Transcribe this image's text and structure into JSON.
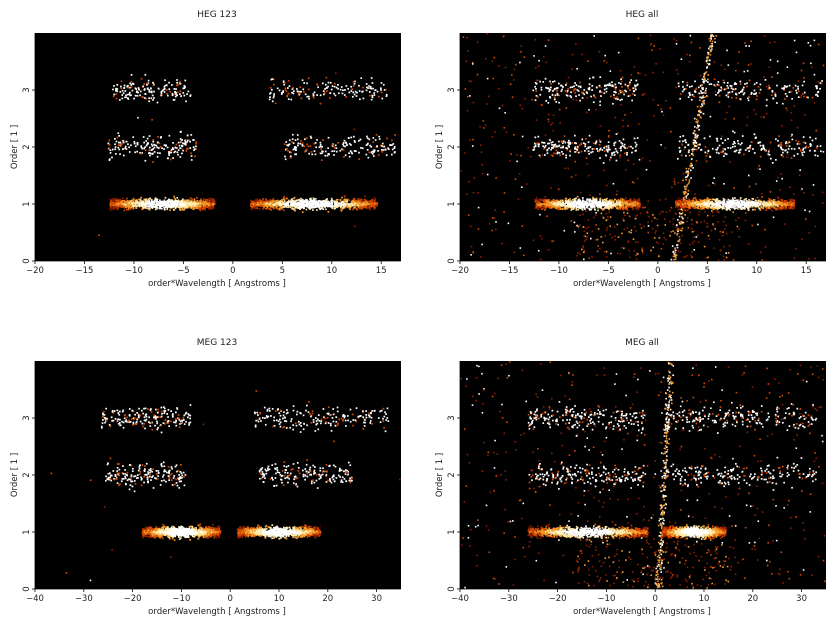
{
  "chart_data": [
    {
      "type": "heatmap",
      "title": "HEG 123",
      "xlabel": "order*Wavelength [ Angstroms ]",
      "ylabel": "Order [ 1 ]",
      "xlim": [
        -20,
        17
      ],
      "ylim": [
        0,
        4
      ],
      "xticks": [
        -20,
        -15,
        -10,
        -5,
        0,
        5,
        10,
        15
      ],
      "yticks": [
        0,
        1,
        2,
        3
      ],
      "background": "#000000",
      "colormap": [
        "#4a0a00",
        "#8a1f00",
        "#d54800",
        "#f39a2a",
        "#ffe9a8",
        "#ffffff"
      ],
      "bands": [
        {
          "order": 1,
          "x_range": [
            -12.4,
            -1.8
          ],
          "peak": 1.0
        },
        {
          "order": 1,
          "x_range": [
            1.8,
            14.6
          ],
          "peak": 1.0
        },
        {
          "order": 2,
          "x_range": [
            -12.6,
            -3.6
          ],
          "peak": 0.35
        },
        {
          "order": 2,
          "x_range": [
            5.2,
            16.4
          ],
          "peak": 0.35
        },
        {
          "order": 3,
          "x_range": [
            -12.2,
            -4.2
          ],
          "peak": 0.2
        },
        {
          "order": 3,
          "x_range": [
            3.6,
            15.6
          ],
          "peak": 0.2
        }
      ],
      "background_noise": "low",
      "zero_order_streak": false
    },
    {
      "type": "heatmap",
      "title": "HEG all",
      "xlabel": "order*Wavelength [ Angstroms ]",
      "ylabel": "Order [ 1 ]",
      "xlim": [
        -20,
        17
      ],
      "ylim": [
        0,
        4
      ],
      "xticks": [
        -20,
        -15,
        -10,
        -5,
        0,
        5,
        10,
        15
      ],
      "yticks": [
        0,
        1,
        2,
        3
      ],
      "background": "#000000",
      "colormap": [
        "#4a0a00",
        "#8a1f00",
        "#d54800",
        "#f39a2a",
        "#ffe9a8",
        "#ffffff"
      ],
      "bands": [
        {
          "order": 1,
          "x_range": [
            -12.4,
            -1.8
          ],
          "peak": 1.0
        },
        {
          "order": 1,
          "x_range": [
            1.8,
            13.8
          ],
          "peak": 1.0
        },
        {
          "order": 2,
          "x_range": [
            -12.6,
            -2.0
          ],
          "peak": 0.4
        },
        {
          "order": 2,
          "x_range": [
            2.0,
            16.6
          ],
          "peak": 0.4
        },
        {
          "order": 3,
          "x_range": [
            -12.6,
            -2.0
          ],
          "peak": 0.3
        },
        {
          "order": 3,
          "x_range": [
            2.0,
            16.6
          ],
          "peak": 0.3
        }
      ],
      "background_noise": "high",
      "zero_order_streak": true
    },
    {
      "type": "heatmap",
      "title": "MEG 123",
      "xlabel": "order*Wavelength [ Angstroms ]",
      "ylabel": "Order [ 1 ]",
      "xlim": [
        -40,
        35
      ],
      "ylim": [
        0,
        4
      ],
      "xticks": [
        -40,
        -30,
        -20,
        -10,
        0,
        10,
        20,
        30
      ],
      "yticks": [
        0,
        1,
        2,
        3
      ],
      "background": "#000000",
      "colormap": [
        "#4a0a00",
        "#8a1f00",
        "#d54800",
        "#f39a2a",
        "#ffe9a8",
        "#ffffff"
      ],
      "bands": [
        {
          "order": 1,
          "x_range": [
            -18,
            -2.0
          ],
          "peak": 1.0
        },
        {
          "order": 1,
          "x_range": [
            1.5,
            18.5
          ],
          "peak": 1.0
        },
        {
          "order": 2,
          "x_range": [
            -25.5,
            -9.0
          ],
          "peak": 0.4
        },
        {
          "order": 2,
          "x_range": [
            6.0,
            25.0
          ],
          "peak": 0.4
        },
        {
          "order": 3,
          "x_range": [
            -26.5,
            -8.0
          ],
          "peak": 0.45
        },
        {
          "order": 3,
          "x_range": [
            5.0,
            32.5
          ],
          "peak": 0.45
        }
      ],
      "background_noise": "low",
      "zero_order_streak": false
    },
    {
      "type": "heatmap",
      "title": "MEG all",
      "xlabel": "order*Wavelength [ Angstroms ]",
      "ylabel": "Order [ 1 ]",
      "xlim": [
        -40,
        35
      ],
      "ylim": [
        0,
        4
      ],
      "xticks": [
        -40,
        -30,
        -20,
        -10,
        0,
        10,
        20,
        30
      ],
      "yticks": [
        0,
        1,
        2,
        3
      ],
      "background": "#000000",
      "colormap": [
        "#4a0a00",
        "#8a1f00",
        "#d54800",
        "#f39a2a",
        "#ffe9a8",
        "#ffffff"
      ],
      "bands": [
        {
          "order": 1,
          "x_range": [
            -26.0,
            -1.5
          ],
          "peak": 1.0
        },
        {
          "order": 1,
          "x_range": [
            1.5,
            14.5
          ],
          "peak": 1.0
        },
        {
          "order": 2,
          "x_range": [
            -26.0,
            -2.0
          ],
          "peak": 0.45
        },
        {
          "order": 2,
          "x_range": [
            2.0,
            33.0
          ],
          "peak": 0.45
        },
        {
          "order": 3,
          "x_range": [
            -26.0,
            -2.0
          ],
          "peak": 0.45
        },
        {
          "order": 3,
          "x_range": [
            2.0,
            33.0
          ],
          "peak": 0.45
        }
      ],
      "background_noise": "high",
      "zero_order_streak": true
    }
  ]
}
